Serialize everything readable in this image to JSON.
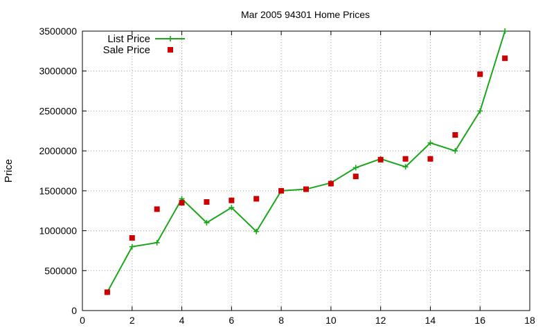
{
  "chart_data": {
    "type": "line",
    "title": "Mar 2005 94301 Home Prices",
    "xlabel": "",
    "ylabel": "Price",
    "xlim": [
      0,
      18
    ],
    "ylim": [
      0,
      3500000
    ],
    "x_ticks": [
      0,
      2,
      4,
      6,
      8,
      10,
      12,
      14,
      16,
      18
    ],
    "y_ticks": [
      0,
      500000,
      1000000,
      1500000,
      2000000,
      2500000,
      3000000,
      3500000
    ],
    "x_tick_labels": [
      "0",
      "2",
      "4",
      "6",
      "8",
      "10",
      "12",
      "14",
      "16",
      "18"
    ],
    "y_tick_labels": [
      "0",
      "500000",
      "1000000",
      "1500000",
      "2000000",
      "2500000",
      "3000000",
      "3500000"
    ],
    "grid": true,
    "legend_position": "top-left",
    "series": [
      {
        "name": "List Price",
        "style": "line-points",
        "marker": "plus",
        "color": "#1aa61a",
        "x": [
          1,
          2,
          3,
          4,
          5,
          6,
          7,
          8,
          9,
          10,
          11,
          12,
          13,
          14,
          15,
          16,
          17
        ],
        "y": [
          230000,
          800000,
          850000,
          1400000,
          1100000,
          1290000,
          990000,
          1500000,
          1520000,
          1600000,
          1790000,
          1900000,
          1800000,
          2100000,
          2000000,
          2500000,
          3500000
        ]
      },
      {
        "name": "Sale Price",
        "style": "points",
        "marker": "square",
        "color": "#cc0000",
        "x": [
          1,
          2,
          3,
          4,
          5,
          6,
          7,
          8,
          9,
          10,
          11,
          12,
          13,
          14,
          15,
          16,
          17
        ],
        "y": [
          230000,
          910000,
          1270000,
          1350000,
          1360000,
          1380000,
          1400000,
          1500000,
          1520000,
          1590000,
          1680000,
          1890000,
          1900000,
          1900000,
          2200000,
          2960000,
          3160000
        ]
      }
    ]
  }
}
